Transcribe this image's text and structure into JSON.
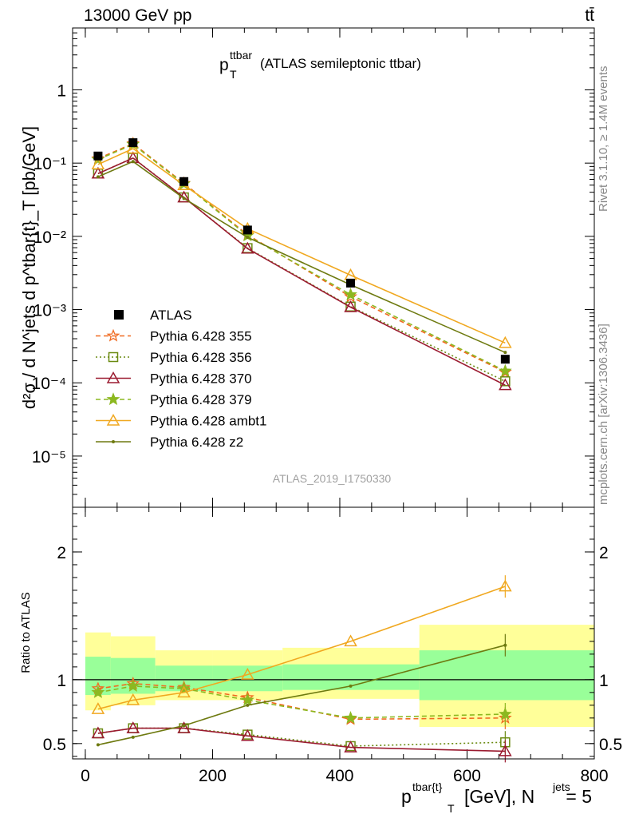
{
  "header": {
    "energy_label": "13000 GeV pp",
    "process_label": "tt̄",
    "side_label_rivet": "Rivet 3.1.10, ≥ 1.4M events",
    "side_label_mcplots": "mcplots.cern.ch [arXiv:1306.3436]"
  },
  "chart_data": [
    {
      "type": "line",
      "panel": "main",
      "title_main": "p",
      "title_sup": "ttbar",
      "title_sub": "T",
      "title_rest": "(ATLAS semileptonic ttbar)",
      "watermark": "ATLAS_2019_I1750330",
      "ylabel": "d²σ / d N^jets d p^tbar{t}_T [pb/GeV]",
      "yscale": "log",
      "ylim": [
        2e-06,
        7
      ],
      "xlim": [
        -20,
        800
      ],
      "y_tick_labels": [
        "10⁻⁵",
        "10⁻⁴",
        "10⁻³",
        "10⁻²",
        "10⁻¹",
        "1"
      ],
      "legend_position": "middle-left",
      "x": [
        20,
        75,
        155,
        255,
        417,
        660
      ],
      "data_series": {
        "name": "ATLAS",
        "color": "#000000",
        "values": [
          0.125,
          0.19,
          0.056,
          0.0122,
          0.0023,
          0.00021
        ]
      },
      "series": [
        {
          "name": "Pythia 6.428 355",
          "color": "#f06a20",
          "dash": "dashed",
          "marker": "star-open",
          "values": [
            0.115,
            0.185,
            0.053,
            0.0105,
            0.0015,
            0.00014
          ]
        },
        {
          "name": "Pythia 6.428 356",
          "color": "#6a8a10",
          "dash": "dotted",
          "marker": "square-open",
          "values": [
            0.072,
            0.118,
            0.034,
            0.0069,
            0.0011,
            0.000105
          ]
        },
        {
          "name": "Pythia 6.428 370",
          "color": "#9b1b30",
          "dash": "solid",
          "marker": "triangle-open",
          "values": [
            0.072,
            0.117,
            0.034,
            0.0068,
            0.00108,
            9.3e-05
          ]
        },
        {
          "name": "Pythia 6.428 379",
          "color": "#8cb820",
          "dash": "dashed",
          "marker": "star-filled",
          "values": [
            0.112,
            0.18,
            0.052,
            0.0102,
            0.0016,
            0.000145
          ]
        },
        {
          "name": "Pythia 6.428 ambt1",
          "color": "#f0a820",
          "dash": "solid",
          "marker": "triangle-open",
          "values": [
            0.096,
            0.158,
            0.05,
            0.0127,
            0.00295,
            0.00035
          ]
        },
        {
          "name": "Pythia 6.428 z2",
          "color": "#6e7a10",
          "dash": "solid",
          "marker": "dot",
          "values": [
            0.065,
            0.105,
            0.033,
            0.0097,
            0.00218,
            0.00026
          ]
        }
      ]
    },
    {
      "type": "line",
      "panel": "ratio",
      "ylabel": "Ratio to ATLAS",
      "xlabel_main": "p",
      "xlabel_sup": "tbar{t}",
      "xlabel_sub": "T",
      "xlabel_unit": "[GeV], N",
      "xlabel_sup2": "jets",
      "xlabel_end": "= 5",
      "ylim": [
        0.38,
        2.35
      ],
      "xlim": [
        -20,
        800
      ],
      "x_ticks": [
        0,
        200,
        400,
        600,
        800
      ],
      "x_tick_labels": [
        "0",
        "200",
        "400",
        "600",
        "800"
      ],
      "y_ticks": [
        0.5,
        1,
        2
      ],
      "y_tick_labels": [
        "0.5",
        "1",
        "2"
      ],
      "bins": [
        {
          "lo": 0,
          "hi": 40,
          "stat_lo": 0.88,
          "stat_hi": 1.18,
          "tot_lo": 0.76,
          "tot_hi": 1.37
        },
        {
          "lo": 40,
          "hi": 110,
          "stat_lo": 0.89,
          "stat_hi": 1.17,
          "tot_lo": 0.8,
          "tot_hi": 1.34
        },
        {
          "lo": 110,
          "hi": 200,
          "stat_lo": 0.91,
          "stat_hi": 1.11,
          "tot_lo": 0.84,
          "tot_hi": 1.23
        },
        {
          "lo": 200,
          "hi": 310,
          "stat_lo": 0.91,
          "stat_hi": 1.11,
          "tot_lo": 0.84,
          "tot_hi": 1.23
        },
        {
          "lo": 310,
          "hi": 525,
          "stat_lo": 0.92,
          "stat_hi": 1.12,
          "tot_lo": 0.85,
          "tot_hi": 1.25
        },
        {
          "lo": 525,
          "hi": 800,
          "stat_lo": 0.84,
          "stat_hi": 1.23,
          "tot_lo": 0.63,
          "tot_hi": 1.43
        }
      ],
      "x": [
        20,
        75,
        155,
        255,
        417,
        660
      ],
      "series": [
        {
          "name": "Pythia 6.428 355",
          "values": [
            0.93,
            0.97,
            0.94,
            0.86,
            0.69,
            0.7
          ]
        },
        {
          "name": "Pythia 6.428 356",
          "values": [
            0.58,
            0.62,
            0.62,
            0.57,
            0.48,
            0.51
          ]
        },
        {
          "name": "Pythia 6.428 370",
          "values": [
            0.58,
            0.62,
            0.62,
            0.56,
            0.47,
            0.44
          ]
        },
        {
          "name": "Pythia 6.428 379",
          "values": [
            0.9,
            0.95,
            0.93,
            0.84,
            0.7,
            0.73
          ]
        },
        {
          "name": "Pythia 6.428 ambt1",
          "values": [
            0.77,
            0.84,
            0.9,
            1.04,
            1.3,
            1.73
          ]
        },
        {
          "name": "Pythia 6.428 z2",
          "values": [
            0.49,
            0.55,
            0.64,
            0.8,
            0.95,
            1.27
          ]
        }
      ]
    }
  ]
}
